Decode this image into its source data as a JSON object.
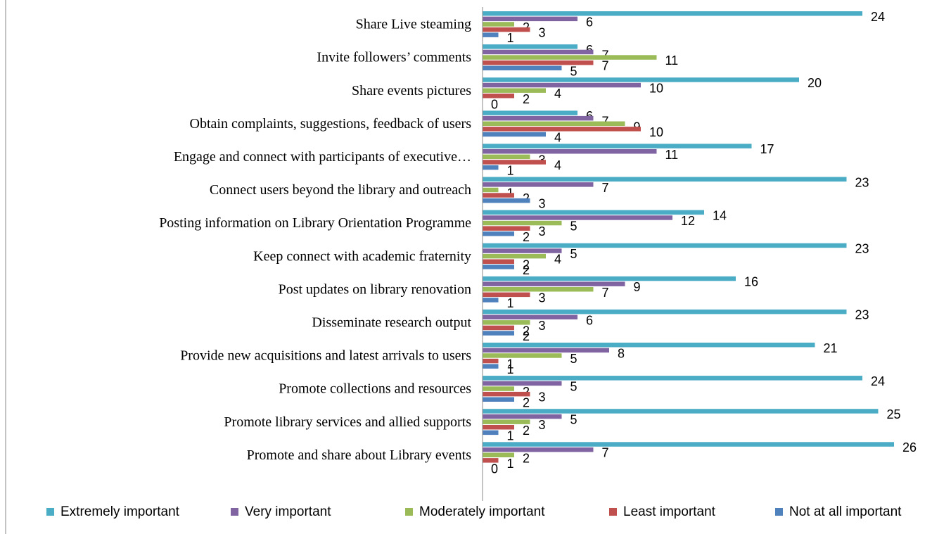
{
  "chart_data": {
    "type": "bar",
    "orientation": "horizontal",
    "categories": [
      "Share Live steaming",
      "Invite followers’ comments",
      "Share events pictures",
      "Obtain complaints, suggestions, feedback of users",
      "Engage and connect with participants of executive…",
      "Connect users beyond the library and outreach",
      "Posting information on Library Orientation Programme",
      "Keep connect with academic fraternity",
      "Post updates on library renovation",
      "Disseminate research output",
      "Provide new acquisitions and latest arrivals to users",
      "Promote collections and resources",
      "Promote library services and allied supports",
      "Promote and share about Library events"
    ],
    "series": [
      {
        "name": "Extremely important",
        "color": "#4bacc6",
        "values": [
          24,
          6,
          20,
          6,
          17,
          23,
          14,
          23,
          16,
          23,
          21,
          24,
          25,
          26
        ]
      },
      {
        "name": "Very important",
        "color": "#8064a2",
        "values": [
          6,
          7,
          10,
          7,
          11,
          7,
          12,
          5,
          9,
          6,
          8,
          5,
          5,
          7
        ]
      },
      {
        "name": "Moderately important",
        "color": "#9bbb59",
        "values": [
          2,
          11,
          4,
          9,
          3,
          1,
          5,
          4,
          7,
          3,
          5,
          2,
          3,
          2
        ]
      },
      {
        "name": "Least important",
        "color": "#c0504d",
        "values": [
          3,
          7,
          2,
          10,
          4,
          2,
          3,
          2,
          3,
          2,
          1,
          3,
          2,
          1
        ]
      },
      {
        "name": "Not at all important",
        "color": "#4f81bd",
        "values": [
          1,
          5,
          0,
          4,
          1,
          3,
          2,
          2,
          1,
          2,
          1,
          2,
          1,
          0
        ]
      }
    ],
    "legend": "bottom"
  }
}
